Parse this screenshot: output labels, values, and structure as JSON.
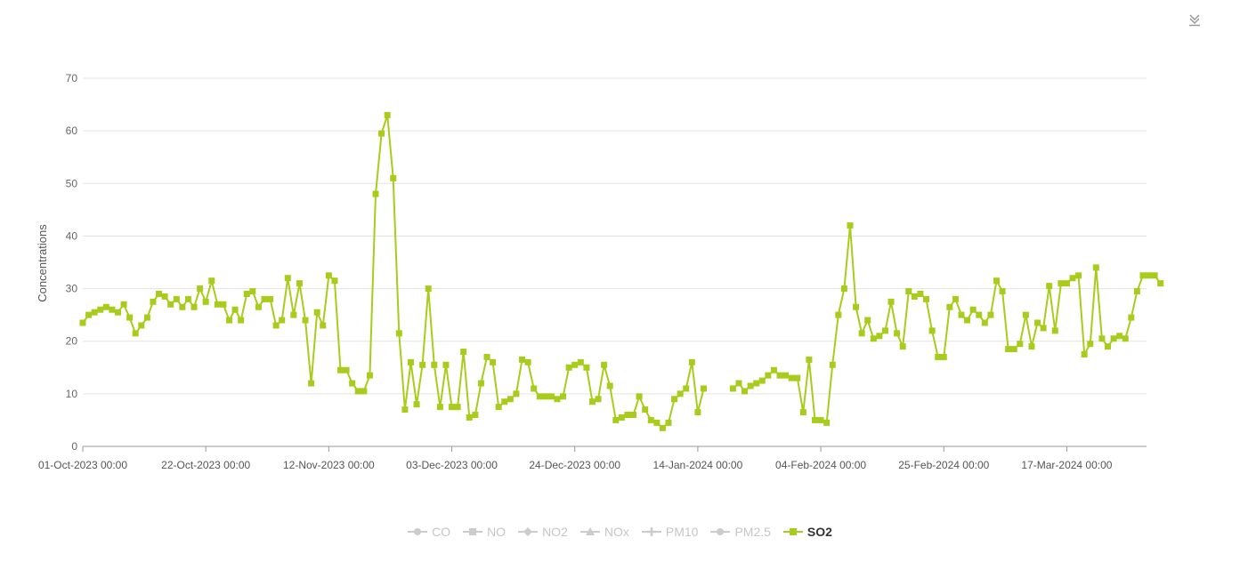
{
  "toolbar": {
    "download_icon": "download-icon"
  },
  "chart_data": {
    "type": "line",
    "title": "",
    "xlabel": "",
    "ylabel": "Concentrations",
    "ylim": [
      0,
      70
    ],
    "yticks": [
      0,
      10,
      20,
      30,
      40,
      50,
      60,
      70
    ],
    "xlim": [
      "2023-10-01",
      "2024-03-31"
    ],
    "xticks": [
      {
        "date": "2023-10-01",
        "label": "01-Oct-2023 00:00"
      },
      {
        "date": "2023-10-22",
        "label": "22-Oct-2023 00:00"
      },
      {
        "date": "2023-11-12",
        "label": "12-Nov-2023 00:00"
      },
      {
        "date": "2023-12-03",
        "label": "03-Dec-2023 00:00"
      },
      {
        "date": "2023-12-24",
        "label": "24-Dec-2023 00:00"
      },
      {
        "date": "2024-01-14",
        "label": "14-Jan-2024 00:00"
      },
      {
        "date": "2024-02-04",
        "label": "04-Feb-2024 00:00"
      },
      {
        "date": "2024-02-25",
        "label": "25-Feb-2024 00:00"
      },
      {
        "date": "2024-03-17",
        "label": "17-Mar-2024 00:00"
      }
    ],
    "grid": true,
    "legend_position": "bottom-center",
    "legend": [
      {
        "name": "CO",
        "marker": "circle",
        "active": false
      },
      {
        "name": "NO",
        "marker": "square",
        "active": false
      },
      {
        "name": "NO2",
        "marker": "diamond",
        "active": false
      },
      {
        "name": "NOx",
        "marker": "triangle",
        "active": false
      },
      {
        "name": "PM10",
        "marker": "cross",
        "active": false
      },
      {
        "name": "PM2.5",
        "marker": "circle",
        "active": false
      },
      {
        "name": "SO2",
        "marker": "square",
        "active": true
      }
    ],
    "series": [
      {
        "name": "SO2",
        "color": "#a8cc1c",
        "points": [
          [
            "2023-10-01",
            23.5
          ],
          [
            "2023-10-02",
            25
          ],
          [
            "2023-10-03",
            25.5
          ],
          [
            "2023-10-04",
            26
          ],
          [
            "2023-10-05",
            26.5
          ],
          [
            "2023-10-06",
            26
          ],
          [
            "2023-10-07",
            25.5
          ],
          [
            "2023-10-08",
            27
          ],
          [
            "2023-10-09",
            24.5
          ],
          [
            "2023-10-10",
            21.5
          ],
          [
            "2023-10-11",
            23
          ],
          [
            "2023-10-12",
            24.5
          ],
          [
            "2023-10-13",
            27.5
          ],
          [
            "2023-10-14",
            29
          ],
          [
            "2023-10-15",
            28.5
          ],
          [
            "2023-10-16",
            27
          ],
          [
            "2023-10-17",
            28
          ],
          [
            "2023-10-18",
            26.5
          ],
          [
            "2023-10-19",
            28
          ],
          [
            "2023-10-20",
            26.5
          ],
          [
            "2023-10-21",
            30
          ],
          [
            "2023-10-22",
            27.5
          ],
          [
            "2023-10-23",
            31.5
          ],
          [
            "2023-10-24",
            27
          ],
          [
            "2023-10-25",
            27
          ],
          [
            "2023-10-26",
            24
          ],
          [
            "2023-10-27",
            26
          ],
          [
            "2023-10-28",
            24
          ],
          [
            "2023-10-29",
            29
          ],
          [
            "2023-10-30",
            29.5
          ],
          [
            "2023-10-31",
            26.5
          ],
          [
            "2023-11-01",
            28
          ],
          [
            "2023-11-02",
            28
          ],
          [
            "2023-11-03",
            23
          ],
          [
            "2023-11-04",
            24
          ],
          [
            "2023-11-05",
            32
          ],
          [
            "2023-11-06",
            25
          ],
          [
            "2023-11-07",
            31
          ],
          [
            "2023-11-08",
            24
          ],
          [
            "2023-11-09",
            12
          ],
          [
            "2023-11-10",
            25.5
          ],
          [
            "2023-11-11",
            23
          ],
          [
            "2023-11-12",
            32.5
          ],
          [
            "2023-11-13",
            31.5
          ],
          [
            "2023-11-14",
            14.5
          ],
          [
            "2023-11-15",
            14.5
          ],
          [
            "2023-11-16",
            12
          ],
          [
            "2023-11-17",
            10.5
          ],
          [
            "2023-11-18",
            10.5
          ],
          [
            "2023-11-19",
            13.5
          ],
          [
            "2023-11-20",
            48
          ],
          [
            "2023-11-21",
            59.5
          ],
          [
            "2023-11-22",
            63
          ],
          [
            "2023-11-23",
            51
          ],
          [
            "2023-11-24",
            21.5
          ],
          [
            "2023-11-25",
            7
          ],
          [
            "2023-11-26",
            16
          ],
          [
            "2023-11-27",
            8
          ],
          [
            "2023-11-28",
            15.5
          ],
          [
            "2023-11-29",
            30
          ],
          [
            "2023-11-30",
            15.5
          ],
          [
            "2023-12-01",
            7.5
          ],
          [
            "2023-12-02",
            15.5
          ],
          [
            "2023-12-03",
            7.5
          ],
          [
            "2023-12-04",
            7.5
          ],
          [
            "2023-12-05",
            18
          ],
          [
            "2023-12-06",
            5.5
          ],
          [
            "2023-12-07",
            6
          ],
          [
            "2023-12-08",
            12
          ],
          [
            "2023-12-09",
            17
          ],
          [
            "2023-12-10",
            16
          ],
          [
            "2023-12-11",
            7.5
          ],
          [
            "2023-12-12",
            8.5
          ],
          [
            "2023-12-13",
            9
          ],
          [
            "2023-12-14",
            10
          ],
          [
            "2023-12-15",
            16.5
          ],
          [
            "2023-12-16",
            16
          ],
          [
            "2023-12-17",
            11
          ],
          [
            "2023-12-18",
            9.5
          ],
          [
            "2023-12-19",
            9.5
          ],
          [
            "2023-12-20",
            9.5
          ],
          [
            "2023-12-21",
            9
          ],
          [
            "2023-12-22",
            9.5
          ],
          [
            "2023-12-23",
            15
          ],
          [
            "2023-12-24",
            15.5
          ],
          [
            "2023-12-25",
            16
          ],
          [
            "2023-12-26",
            15
          ],
          [
            "2023-12-27",
            8.5
          ],
          [
            "2023-12-28",
            9
          ],
          [
            "2023-12-29",
            15.5
          ],
          [
            "2023-12-30",
            11.5
          ],
          [
            "2023-12-31",
            5
          ],
          [
            "2024-01-01",
            5.5
          ],
          [
            "2024-01-02",
            6
          ],
          [
            "2024-01-03",
            6
          ],
          [
            "2024-01-04",
            9.5
          ],
          [
            "2024-01-05",
            7
          ],
          [
            "2024-01-06",
            5
          ],
          [
            "2024-01-07",
            4.5
          ],
          [
            "2024-01-08",
            3.5
          ],
          [
            "2024-01-09",
            4.5
          ],
          [
            "2024-01-10",
            9
          ],
          [
            "2024-01-11",
            10
          ],
          [
            "2024-01-12",
            11
          ],
          [
            "2024-01-13",
            16
          ],
          [
            "2024-01-14",
            6.5
          ],
          [
            "2024-01-15",
            11
          ],
          [
            "2024-01-16",
            null
          ],
          [
            "2024-01-17",
            null
          ],
          [
            "2024-01-18",
            null
          ],
          [
            "2024-01-19",
            null
          ],
          [
            "2024-01-20",
            11
          ],
          [
            "2024-01-21",
            12
          ],
          [
            "2024-01-22",
            10.5
          ],
          [
            "2024-01-23",
            11.5
          ],
          [
            "2024-01-24",
            12
          ],
          [
            "2024-01-25",
            12.5
          ],
          [
            "2024-01-26",
            13.5
          ],
          [
            "2024-01-27",
            14.5
          ],
          [
            "2024-01-28",
            13.5
          ],
          [
            "2024-01-29",
            13.5
          ],
          [
            "2024-01-30",
            13
          ],
          [
            "2024-01-31",
            13
          ],
          [
            "2024-02-01",
            6.5
          ],
          [
            "2024-02-02",
            16.5
          ],
          [
            "2024-02-03",
            5
          ],
          [
            "2024-02-04",
            5
          ],
          [
            "2024-02-05",
            4.5
          ],
          [
            "2024-02-06",
            15.5
          ],
          [
            "2024-02-07",
            25
          ],
          [
            "2024-02-08",
            30
          ],
          [
            "2024-02-09",
            42
          ],
          [
            "2024-02-10",
            26.5
          ],
          [
            "2024-02-11",
            21.5
          ],
          [
            "2024-02-12",
            24
          ],
          [
            "2024-02-13",
            20.5
          ],
          [
            "2024-02-14",
            21
          ],
          [
            "2024-02-15",
            22
          ],
          [
            "2024-02-16",
            27.5
          ],
          [
            "2024-02-17",
            21.5
          ],
          [
            "2024-02-18",
            19
          ],
          [
            "2024-02-19",
            29.5
          ],
          [
            "2024-02-20",
            28.5
          ],
          [
            "2024-02-21",
            29
          ],
          [
            "2024-02-22",
            28
          ],
          [
            "2024-02-23",
            22
          ],
          [
            "2024-02-24",
            17
          ],
          [
            "2024-02-25",
            17
          ],
          [
            "2024-02-26",
            26.5
          ],
          [
            "2024-02-27",
            28
          ],
          [
            "2024-02-28",
            25
          ],
          [
            "2024-02-29",
            24
          ],
          [
            "2024-03-01",
            26
          ],
          [
            "2024-03-02",
            25
          ],
          [
            "2024-03-03",
            23.5
          ],
          [
            "2024-03-04",
            25
          ],
          [
            "2024-03-05",
            31.5
          ],
          [
            "2024-03-06",
            29.5
          ],
          [
            "2024-03-07",
            18.5
          ],
          [
            "2024-03-08",
            18.5
          ],
          [
            "2024-03-09",
            19.5
          ],
          [
            "2024-03-10",
            25
          ],
          [
            "2024-03-11",
            19
          ],
          [
            "2024-03-12",
            23.5
          ],
          [
            "2024-03-13",
            22.5
          ],
          [
            "2024-03-14",
            30.5
          ],
          [
            "2024-03-15",
            22
          ],
          [
            "2024-03-16",
            31
          ],
          [
            "2024-03-17",
            31
          ],
          [
            "2024-03-18",
            32
          ],
          [
            "2024-03-19",
            32.5
          ],
          [
            "2024-03-20",
            17.5
          ],
          [
            "2024-03-21",
            19.5
          ],
          [
            "2024-03-22",
            34
          ],
          [
            "2024-03-23",
            20.5
          ],
          [
            "2024-03-24",
            19
          ],
          [
            "2024-03-25",
            20.5
          ],
          [
            "2024-03-26",
            21
          ],
          [
            "2024-03-27",
            20.5
          ],
          [
            "2024-03-28",
            24.5
          ],
          [
            "2024-03-29",
            29.5
          ],
          [
            "2024-03-30",
            32.5
          ],
          [
            "2024-03-31",
            32.5
          ],
          [
            "2024-04-01",
            32.5
          ],
          [
            "2024-04-02",
            31
          ]
        ]
      }
    ]
  }
}
